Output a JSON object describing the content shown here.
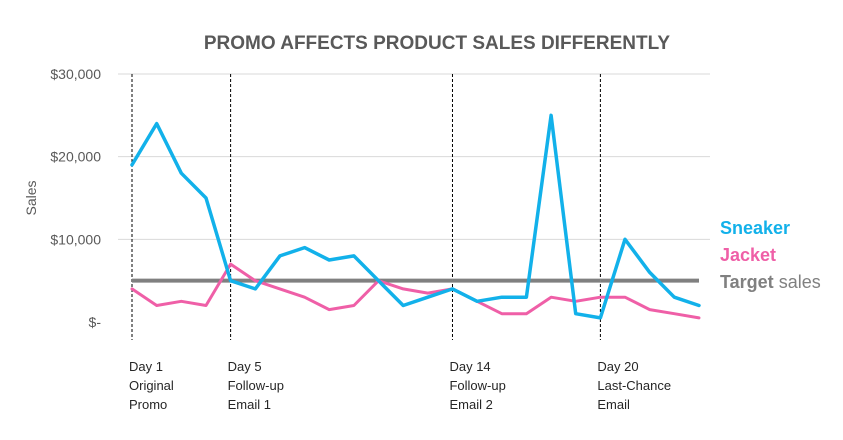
{
  "chart_data": {
    "type": "line",
    "title": "PROMO AFFECTS PRODUCT SALES DIFFERENTLY",
    "ylabel": "Sales",
    "xlabel": "",
    "ylim": [
      0,
      30000
    ],
    "y_ticks": [
      {
        "value": 0,
        "label": "$-"
      },
      {
        "value": 10000,
        "label": "$10,000"
      },
      {
        "value": 20000,
        "label": "$20,000"
      },
      {
        "value": 30000,
        "label": "$30,000"
      }
    ],
    "x": [
      1,
      2,
      3,
      4,
      5,
      6,
      7,
      8,
      9,
      10,
      11,
      12,
      13,
      14,
      15,
      16,
      17,
      18,
      19,
      20,
      21,
      22,
      23,
      24
    ],
    "grid": true,
    "legend_position": "right",
    "series": [
      {
        "name": "Sneaker",
        "color": "#12b1ea",
        "values": [
          19000,
          24000,
          18000,
          15000,
          5000,
          4000,
          8000,
          9000,
          7500,
          8000,
          5000,
          2000,
          3000,
          4000,
          2500,
          3000,
          3000,
          25000,
          1000,
          500,
          10000,
          6000,
          3000,
          2000
        ]
      },
      {
        "name": "Jacket",
        "color": "#ef5fa7",
        "values": [
          4000,
          2000,
          2500,
          2000,
          7000,
          5000,
          4000,
          3000,
          1500,
          2000,
          5000,
          4000,
          3500,
          4000,
          2500,
          1000,
          1000,
          3000,
          2500,
          3000,
          3000,
          1500,
          1000,
          500
        ]
      }
    ],
    "target": {
      "value": 5000,
      "color": "#808080",
      "label_bold": "Target",
      "label_rest": " sales"
    },
    "annotations": [
      {
        "day": 1,
        "lines": [
          "Day 1",
          "Original",
          "Promo"
        ]
      },
      {
        "day": 5,
        "lines": [
          "Day 5",
          "Follow-up",
          "Email 1"
        ]
      },
      {
        "day": 14,
        "lines": [
          "Day 14",
          "Follow-up",
          "Email 2"
        ]
      },
      {
        "day": 20,
        "lines": [
          "Day 20",
          "Last-Chance",
          "Email"
        ]
      }
    ]
  }
}
